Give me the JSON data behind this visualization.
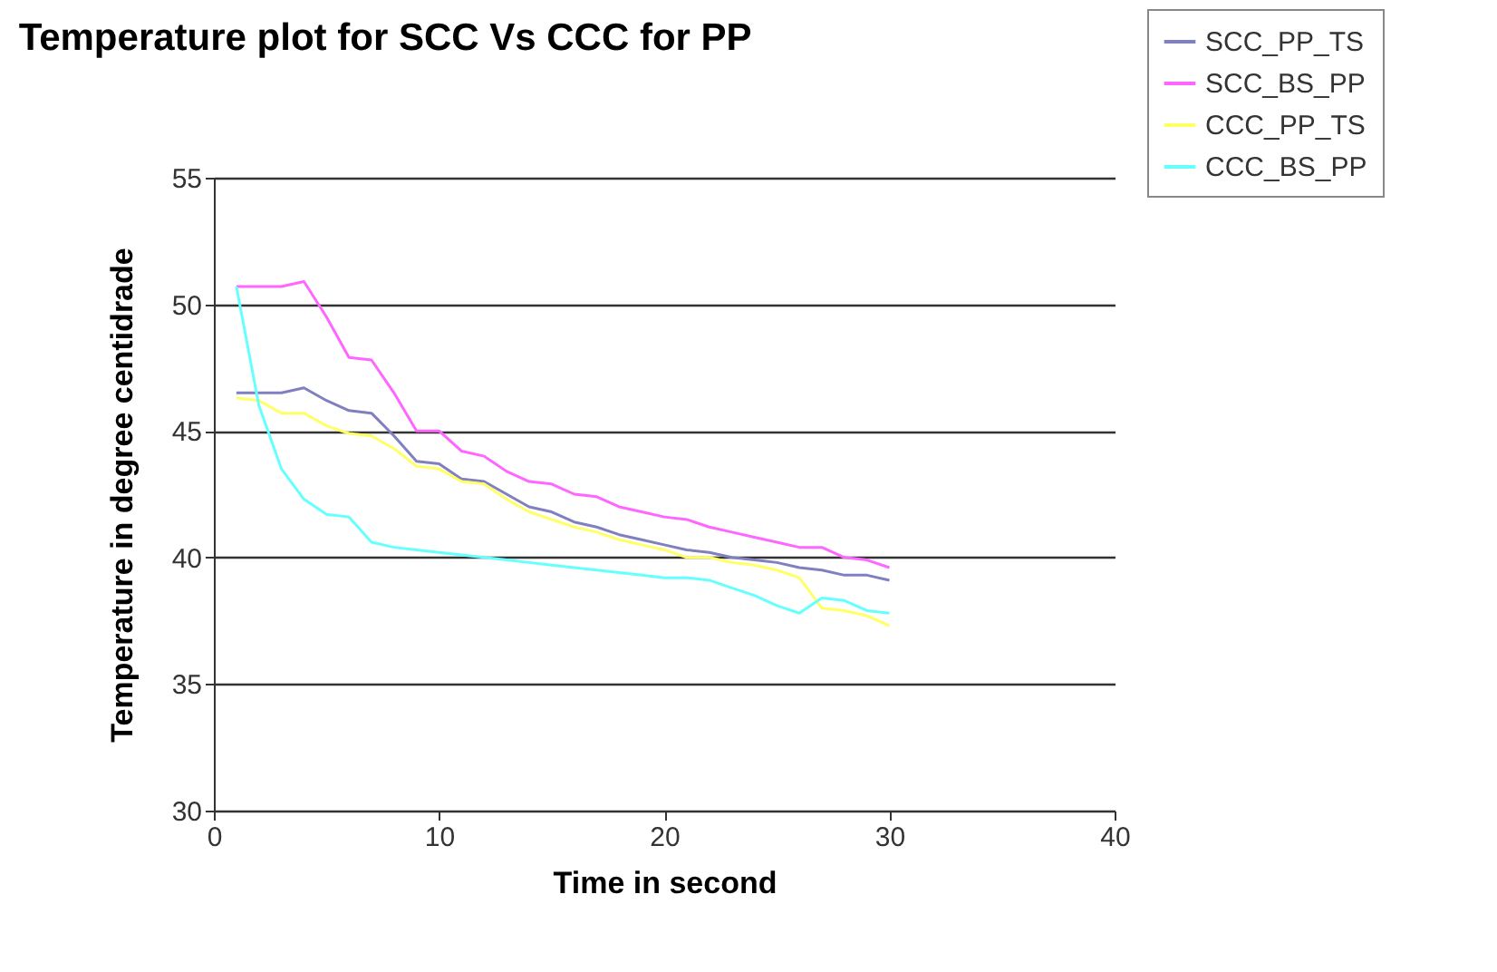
{
  "chart_data": {
    "type": "line",
    "title": "Temperature plot for SCC Vs CCC for PP",
    "xlabel": "Time in second",
    "ylabel": "Temperature in degree centidrade",
    "x": [
      1,
      2,
      3,
      4,
      5,
      6,
      7,
      8,
      9,
      10,
      11,
      12,
      13,
      14,
      15,
      16,
      17,
      18,
      19,
      20,
      21,
      22,
      23,
      24,
      25,
      26,
      27,
      28,
      29,
      30
    ],
    "series": [
      {
        "name": "SCC_PP_TS",
        "color": "#8080c0",
        "values": [
          46.5,
          46.5,
          46.5,
          46.7,
          46.2,
          45.8,
          45.7,
          44.8,
          43.8,
          43.7,
          43.1,
          43.0,
          42.5,
          42.0,
          41.8,
          41.4,
          41.2,
          40.9,
          40.7,
          40.5,
          40.3,
          40.2,
          40.0,
          39.9,
          39.8,
          39.6,
          39.5,
          39.3,
          39.3,
          39.1
        ]
      },
      {
        "name": "SCC_BS_PP",
        "color": "#ff66ff",
        "values": [
          50.7,
          50.7,
          50.7,
          50.9,
          49.5,
          47.9,
          47.8,
          46.5,
          45.0,
          45.0,
          44.2,
          44.0,
          43.4,
          43.0,
          42.9,
          42.5,
          42.4,
          42.0,
          41.8,
          41.6,
          41.5,
          41.2,
          41.0,
          40.8,
          40.6,
          40.4,
          40.4,
          40.0,
          39.9,
          39.6
        ]
      },
      {
        "name": "CCC_PP_TS",
        "color": "#ffff66",
        "values": [
          46.3,
          46.2,
          45.7,
          45.7,
          45.2,
          44.9,
          44.8,
          44.3,
          43.6,
          43.5,
          43.0,
          42.9,
          42.3,
          41.8,
          41.5,
          41.2,
          41.0,
          40.7,
          40.5,
          40.3,
          40.0,
          40.0,
          39.8,
          39.7,
          39.5,
          39.2,
          38.0,
          37.9,
          37.7,
          37.3
        ]
      },
      {
        "name": "CCC_BS_PP",
        "color": "#66ffff",
        "values": [
          50.7,
          46.0,
          43.5,
          42.3,
          41.7,
          41.6,
          40.6,
          40.4,
          40.3,
          40.2,
          40.1,
          40.0,
          39.9,
          39.8,
          39.7,
          39.6,
          39.5,
          39.4,
          39.3,
          39.2,
          39.2,
          39.1,
          38.8,
          38.5,
          38.1,
          37.8,
          38.4,
          38.3,
          37.9,
          37.8
        ]
      }
    ],
    "xlim": [
      0,
      40
    ],
    "xticks": [
      0,
      10,
      20,
      30,
      40
    ],
    "ylim": [
      30,
      55
    ],
    "yticks": [
      30,
      35,
      40,
      45,
      50,
      55
    ],
    "grid": "y",
    "legend": "top right"
  }
}
